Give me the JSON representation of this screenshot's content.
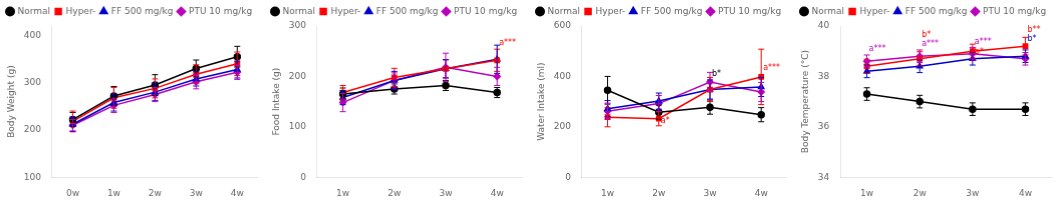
{
  "chart_data": [
    {
      "type": "line",
      "ylabel": "Body Weight (g)",
      "categories": [
        "0w",
        "1w",
        "2w",
        "3w",
        "4w"
      ],
      "ylim": [
        100,
        420
      ],
      "yticks": [
        100,
        200,
        300,
        400
      ],
      "grid": false,
      "legend": "upper left",
      "series": [
        {
          "name": "Normal",
          "color": "#000000",
          "marker": "circle",
          "values": [
            222,
            272,
            295,
            330,
            355
          ],
          "errors": [
            15,
            20,
            22,
            18,
            22
          ]
        },
        {
          "name": "Hyper-",
          "color": "#ff0000",
          "marker": "square",
          "values": [
            218,
            268,
            288,
            318,
            340
          ],
          "errors": [
            22,
            22,
            20,
            20,
            25
          ]
        },
        {
          "name": "FF 500 mg/kg",
          "color": "#0000cc",
          "marker": "triangle",
          "values": [
            212,
            258,
            280,
            308,
            328
          ],
          "errors": [
            15,
            18,
            18,
            15,
            18
          ]
        },
        {
          "name": "PTU 10 mg/kg",
          "color": "#bb00bb",
          "marker": "diamond",
          "values": [
            210,
            252,
            275,
            302,
            322
          ],
          "errors": [
            12,
            15,
            15,
            15,
            15
          ]
        }
      ],
      "annotations": []
    },
    {
      "type": "line",
      "ylabel": "Food Intake (g)",
      "categories": [
        "1w",
        "2w",
        "3w",
        "4w"
      ],
      "ylim": [
        0,
        300
      ],
      "yticks": [
        0,
        100,
        200,
        300
      ],
      "grid": false,
      "legend": "upper left",
      "series": [
        {
          "name": "Normal",
          "color": "#000000",
          "marker": "circle",
          "values": [
            165,
            175,
            182,
            168
          ],
          "errors": [
            12,
            10,
            10,
            10
          ]
        },
        {
          "name": "Hyper-",
          "color": "#ff0000",
          "marker": "square",
          "values": [
            168,
            198,
            215,
            232
          ],
          "errors": [
            14,
            18,
            18,
            22
          ]
        },
        {
          "name": "FF 500 mg/kg",
          "color": "#0000cc",
          "marker": "triangle",
          "values": [
            158,
            192,
            215,
            234
          ],
          "errors": [
            14,
            18,
            18,
            28
          ]
        },
        {
          "name": "PTU 10 mg/kg",
          "color": "#bb00bb",
          "marker": "diamond",
          "values": [
            148,
            192,
            218,
            200
          ],
          "errors": [
            18,
            15,
            28,
            18
          ]
        }
      ],
      "annotations": [
        {
          "x": "4w",
          "y": 258,
          "text": "a***",
          "color": "#ff0000"
        }
      ]
    },
    {
      "type": "line",
      "ylabel": "Water Intake (ml)",
      "categories": [
        "1w",
        "2w",
        "3w",
        "4w"
      ],
      "ylim": [
        0,
        600
      ],
      "yticks": [
        0,
        200,
        400,
        600
      ],
      "grid": false,
      "legend": "upper left",
      "series": [
        {
          "name": "Normal",
          "color": "#000000",
          "marker": "circle",
          "values": [
            345,
            258,
            278,
            248
          ],
          "errors": [
            55,
            28,
            28,
            28
          ]
        },
        {
          "name": "Hyper-",
          "color": "#ff0000",
          "marker": "square",
          "values": [
            238,
            232,
            348,
            398
          ],
          "errors": [
            38,
            28,
            48,
            110
          ]
        },
        {
          "name": "FF 500 mg/kg",
          "color": "#0000cc",
          "marker": "triangle",
          "values": [
            272,
            302,
            348,
            358
          ],
          "errors": [
            32,
            32,
            38,
            38
          ]
        },
        {
          "name": "PTU 10 mg/kg",
          "color": "#bb00bb",
          "marker": "diamond",
          "values": [
            262,
            292,
            378,
            338
          ],
          "errors": [
            32,
            32,
            38,
            38
          ]
        }
      ],
      "annotations": [
        {
          "x": "2w",
          "y": 208,
          "text": "a*",
          "color": "#ff0000"
        },
        {
          "x": "3w",
          "y": 392,
          "text": "b*",
          "color": "#000000"
        },
        {
          "x": "4w",
          "y": 418,
          "text": "a***",
          "color": "#ff0000"
        }
      ]
    },
    {
      "type": "line",
      "ylabel": "Body Temperature (°C)",
      "categories": [
        "1w",
        "2w",
        "3w",
        "4w"
      ],
      "ylim": [
        34,
        40
      ],
      "yticks": [
        34,
        36,
        38,
        40
      ],
      "grid": false,
      "legend": "upper left",
      "series": [
        {
          "name": "Normal",
          "color": "#000000",
          "marker": "circle",
          "values": [
            37.3,
            37.0,
            36.7,
            36.7
          ],
          "errors": [
            0.25,
            0.25,
            0.25,
            0.25
          ]
        },
        {
          "name": "Hyper-",
          "color": "#ff0000",
          "marker": "square",
          "values": [
            38.4,
            38.7,
            39.0,
            39.2
          ],
          "errors": [
            0.28,
            0.28,
            0.28,
            0.35
          ]
        },
        {
          "name": "FF 500 mg/kg",
          "color": "#0000cc",
          "marker": "triangle",
          "values": [
            38.2,
            38.4,
            38.7,
            38.8
          ],
          "errors": [
            0.25,
            0.25,
            0.25,
            0.25
          ]
        },
        {
          "name": "PTU 10 mg/kg",
          "color": "#bb00bb",
          "marker": "diamond",
          "values": [
            38.6,
            38.8,
            38.9,
            38.7
          ],
          "errors": [
            0.25,
            0.25,
            0.25,
            0.25
          ]
        }
      ],
      "annotations": [
        {
          "x": "1w",
          "y": 38.92,
          "text": "a***",
          "color": "#bb00bb"
        },
        {
          "x": "2w",
          "y": 39.12,
          "text": "a***",
          "color": "#bb00bb"
        },
        {
          "x": "2w",
          "y": 38.78,
          "text": "b*",
          "color": "#ff0000"
        },
        {
          "x": "3w",
          "y": 39.22,
          "text": "a***",
          "color": "#bb00bb"
        },
        {
          "x": "3w",
          "y": 38.82,
          "text": "b*",
          "color": "#ff0000"
        },
        {
          "x": "4w",
          "y": 39.32,
          "text": "b*",
          "color": "#0000cc"
        },
        {
          "x": "4w",
          "y": 39.08,
          "text": "b**",
          "color": "#ff0000"
        }
      ]
    }
  ]
}
